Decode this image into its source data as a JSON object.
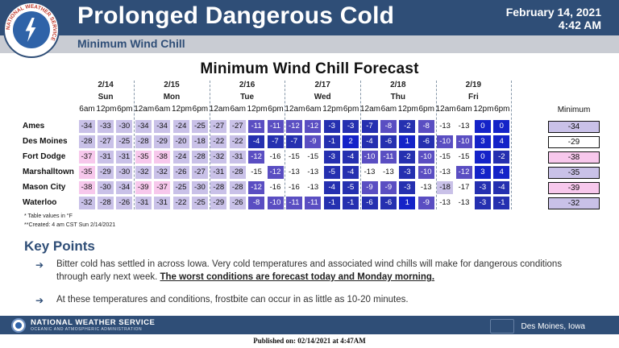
{
  "header": {
    "title": "Prolonged Dangerous Cold",
    "subtitle": "Minimum Wind Chill",
    "date_line1": "February 14, 2021",
    "date_line2": "4:42 AM",
    "logo_text": "NATIONAL WEATHER SERVICE"
  },
  "table": {
    "title": "Minimum Wind Chill Forecast",
    "minimum_header": "Minimum",
    "days": [
      {
        "date": "2/14",
        "name": "Sun",
        "hours": [
          "6am",
          "12pm",
          "6pm"
        ]
      },
      {
        "date": "2/15",
        "name": "Mon",
        "hours": [
          "12am",
          "6am",
          "12pm",
          "6pm"
        ]
      },
      {
        "date": "2/16",
        "name": "Tue",
        "hours": [
          "12am",
          "6am",
          "12pm",
          "6pm"
        ]
      },
      {
        "date": "2/17",
        "name": "Wed",
        "hours": [
          "12am",
          "6am",
          "12pm",
          "6pm"
        ]
      },
      {
        "date": "2/18",
        "name": "Thu",
        "hours": [
          "12am",
          "6am",
          "12pm",
          "6pm"
        ]
      },
      {
        "date": "2/19",
        "name": "Fri",
        "hours": [
          "12am",
          "6am",
          "12pm",
          "6pm"
        ]
      }
    ],
    "rows": [
      {
        "location": "Ames",
        "values": [
          -34,
          -33,
          -30,
          -34,
          -34,
          -24,
          -25,
          -27,
          -27,
          -11,
          -11,
          -12,
          -12,
          -3,
          -3,
          -7,
          -8,
          -2,
          -8,
          -13,
          -13,
          0,
          0
        ],
        "minimum": "-34"
      },
      {
        "location": "Des Moines",
        "values": [
          -28,
          -27,
          -25,
          -28,
          -29,
          -20,
          -18,
          -22,
          -22,
          -4,
          -7,
          -7,
          -9,
          -1,
          2,
          -4,
          -6,
          1,
          -6,
          -10,
          -10,
          3,
          4
        ],
        "minimum": "-29"
      },
      {
        "location": "Fort Dodge",
        "values": [
          -37,
          -31,
          -31,
          -35,
          -38,
          -24,
          -28,
          -32,
          -31,
          -12,
          -16,
          -15,
          -15,
          -3,
          -4,
          -10,
          -11,
          -2,
          -10,
          -15,
          -15,
          0,
          -2
        ],
        "minimum": "-38"
      },
      {
        "location": "Marshalltown",
        "values": [
          -35,
          -29,
          -30,
          -32,
          -32,
          -26,
          -27,
          -31,
          -28,
          -15,
          -12,
          -13,
          -13,
          -5,
          -4,
          -13,
          -13,
          -3,
          -10,
          -13,
          -12,
          3,
          4
        ],
        "minimum": "-35"
      },
      {
        "location": "Mason City",
        "values": [
          -38,
          -30,
          -34,
          -39,
          -37,
          -25,
          -30,
          -28,
          -28,
          -12,
          -16,
          -16,
          -13,
          -4,
          -5,
          -9,
          -9,
          -3,
          -13,
          -18,
          -17,
          -3,
          -4
        ],
        "minimum": "-39"
      },
      {
        "location": "Waterloo",
        "values": [
          -32,
          -28,
          -26,
          -31,
          -31,
          -22,
          -25,
          -29,
          -26,
          -8,
          -10,
          -11,
          -11,
          -1,
          -1,
          -6,
          -6,
          1,
          -9,
          -13,
          -13,
          -3,
          -1
        ],
        "minimum": "-32"
      }
    ],
    "notes": [
      "* Table values in °F",
      "**Created: 4 am CST Sun 2/14/2021"
    ],
    "colors": {
      "extreme": "#f7c8ec",
      "very_cold": "#c9c1e8",
      "cold": "#ffffff",
      "moderate": "#5a4ec2",
      "mild": "#2530b0",
      "warmer": "#1423c8"
    }
  },
  "key_points": {
    "title": "Key Points",
    "items": [
      {
        "text": "Bitter cold has settled in across Iowa. Very cold temperatures and associated wind chills will make for dangerous conditions through early next week. ",
        "emphasis": "The worst conditions are forecast today and Monday morning."
      },
      {
        "text": "At these temperatures and conditions, frostbite can occur in as little as 10-20 minutes.",
        "emphasis": ""
      }
    ],
    "arrow_icon": "arrow-right-icon"
  },
  "footer": {
    "org_name": "NATIONAL WEATHER SERVICE",
    "org_sub": "OCEANIC AND ATMOSPHERIC ADMINISTRATION",
    "office": "Des Moines, Iowa",
    "published": "Published on: 02/14/2021 at 4:47AM"
  }
}
